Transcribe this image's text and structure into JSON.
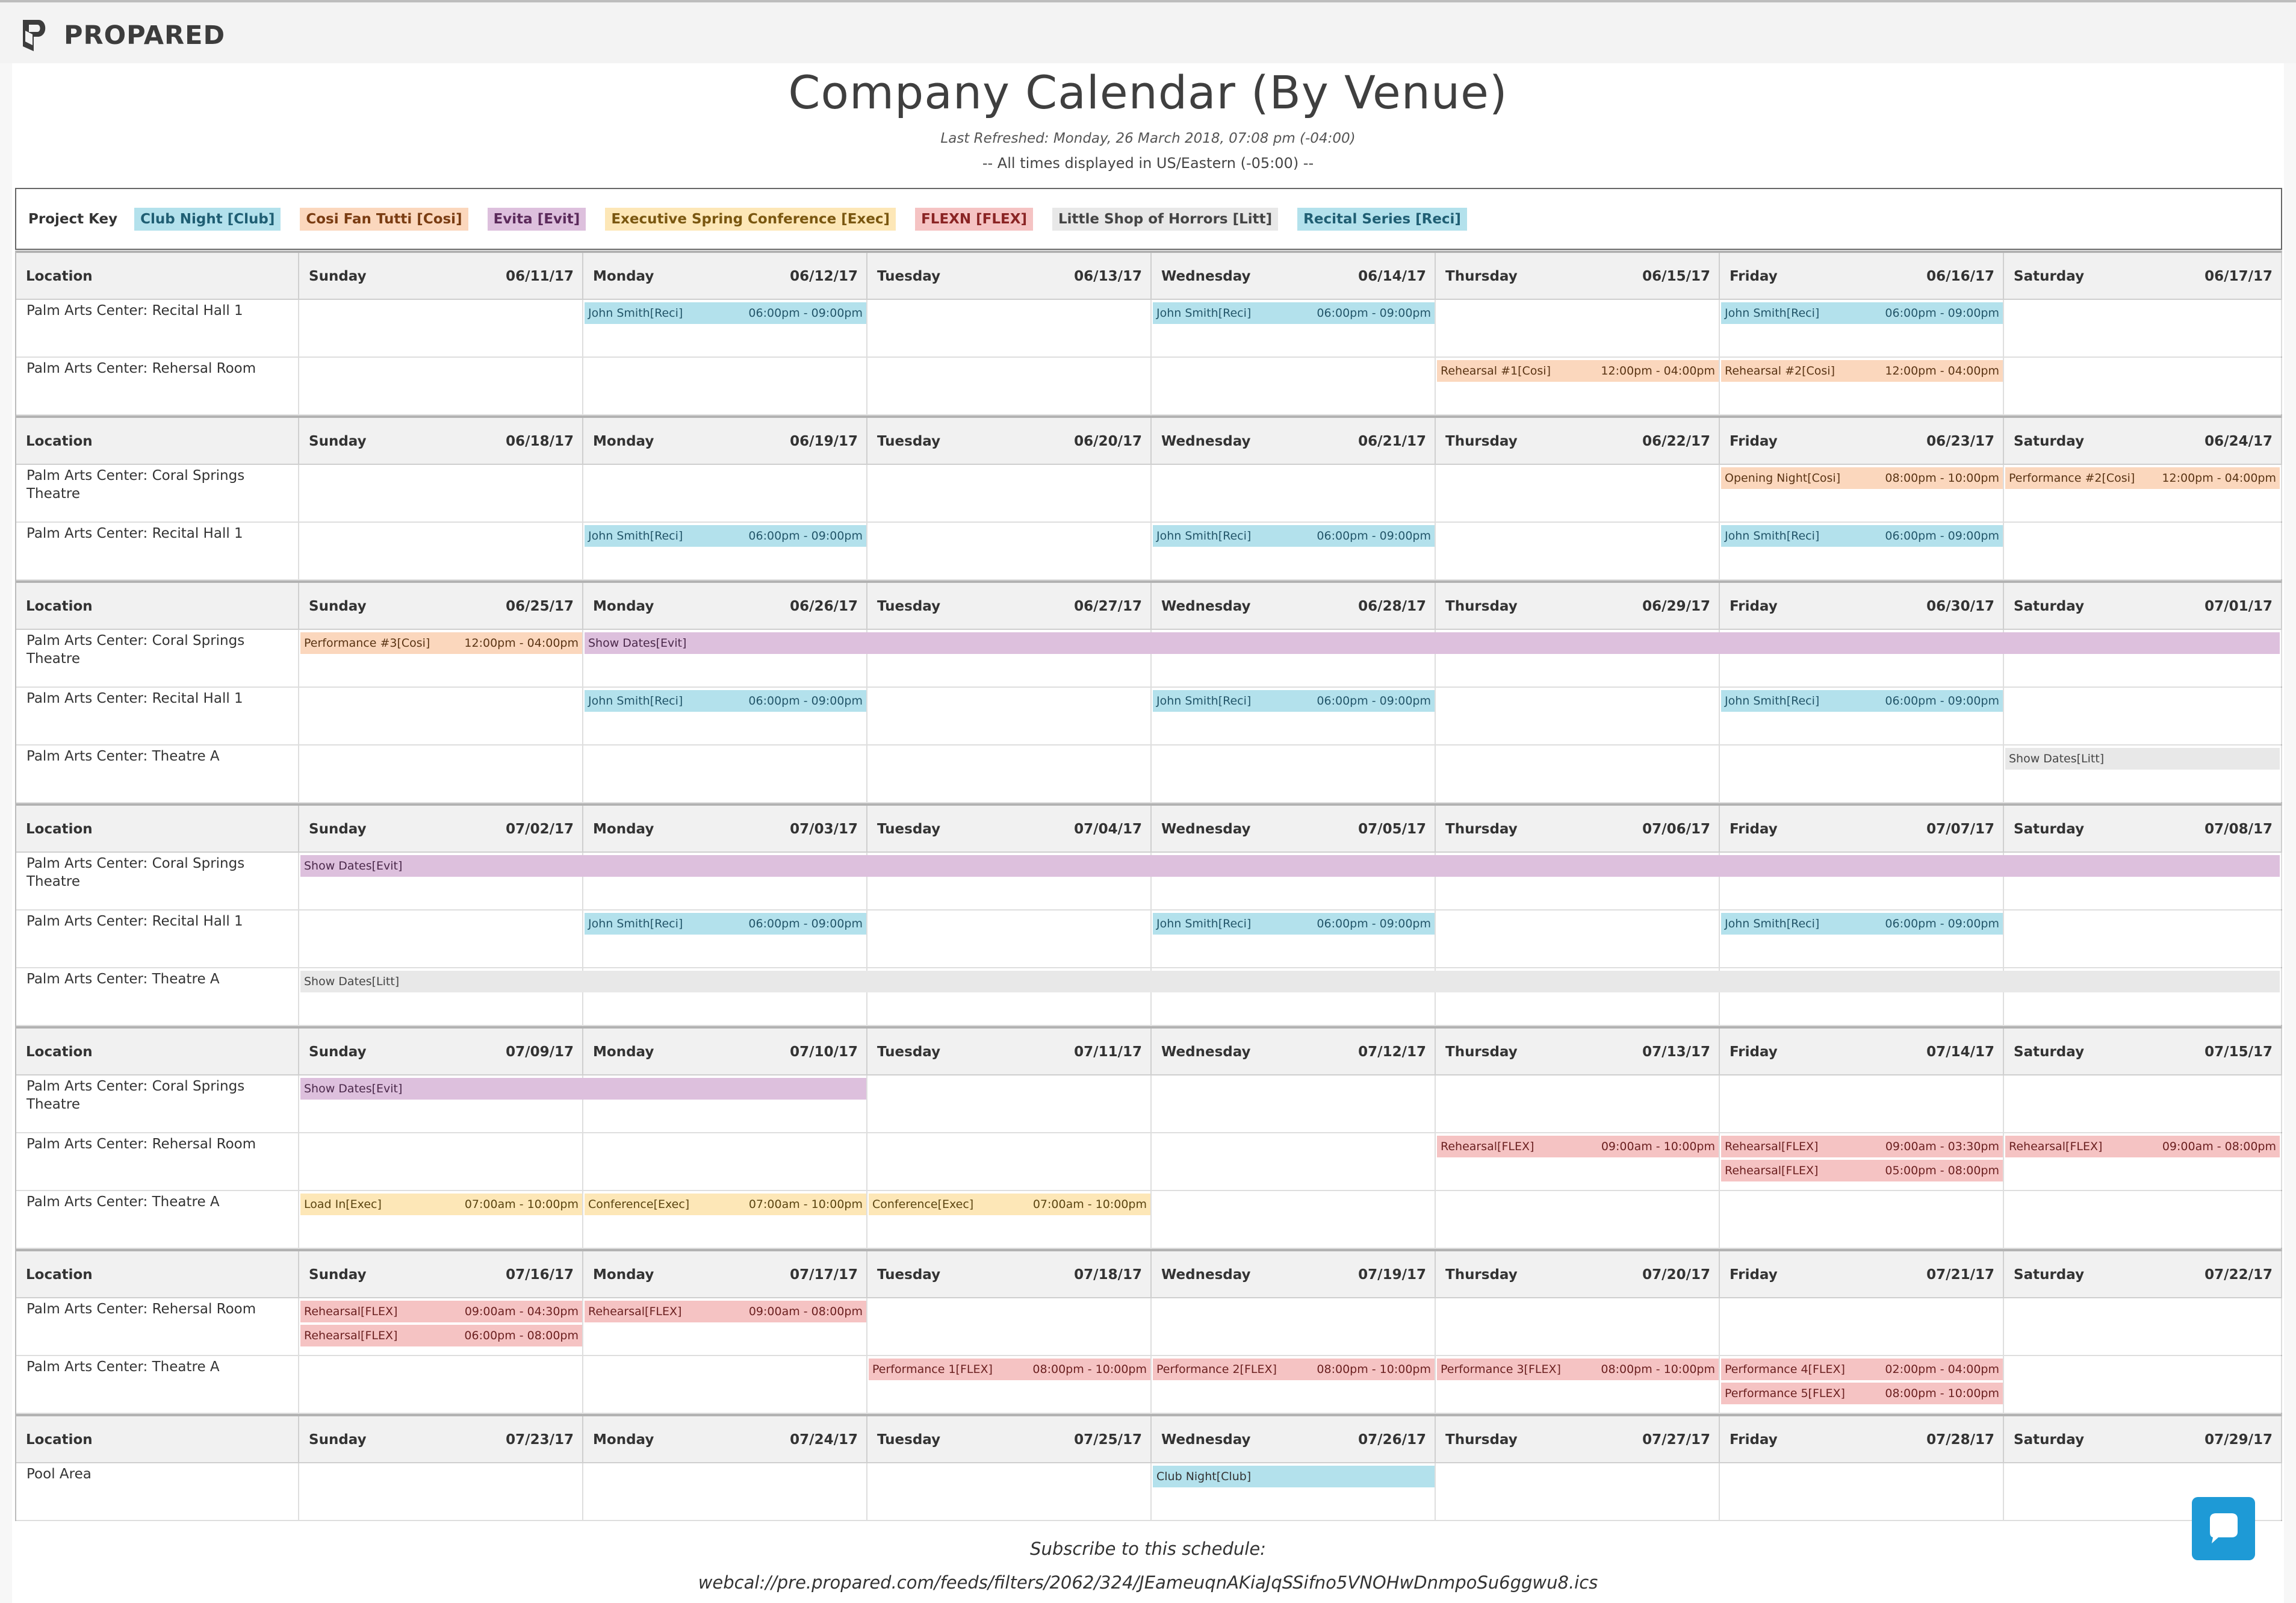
{
  "brand": {
    "name": "PROPARED"
  },
  "page": {
    "title": "Company Calendar (By Venue)",
    "last_refreshed": "Last Refreshed: Monday, 26 March 2018, 07:08 pm (-04:00)",
    "timezone_note": "-- All times displayed in US/Eastern (-05:00) --"
  },
  "project_key": {
    "label": "Project Key",
    "items": [
      {
        "label": "Club Night [Club]",
        "bg": "#b3e1ec",
        "fg": "#1f5e73"
      },
      {
        "label": "Cosi Fan Tutti [Cosi]",
        "bg": "#fbd7bd",
        "fg": "#7a3c12"
      },
      {
        "label": "Evita [Evit]",
        "bg": "#ddc0dd",
        "fg": "#5b2a5b"
      },
      {
        "label": "Executive Spring Conference [Exec]",
        "bg": "#fde7b7",
        "fg": "#7a5710"
      },
      {
        "label": "FLEXN [FLEX]",
        "bg": "#f5c3c3",
        "fg": "#8a2424"
      },
      {
        "label": "Little Shop of Horrors [Litt]",
        "bg": "#e8e8e8",
        "fg": "#444444"
      },
      {
        "label": "Recital Series [Reci]",
        "bg": "#b3e1ec",
        "fg": "#1f5e73"
      }
    ]
  },
  "colors": {
    "Club": "#b3e1ec",
    "Cosi": "#fbd7bd",
    "Evit": "#ddc0dd",
    "Exec": "#fde7b7",
    "FLEX": "#f5c3c3",
    "Litt": "#e8e8e8",
    "Reci": "#b3e1ec",
    "chat": "#1e9ad6"
  },
  "location_header": "Location",
  "day_names": [
    "Sunday",
    "Monday",
    "Tuesday",
    "Wednesday",
    "Thursday",
    "Friday",
    "Saturday"
  ],
  "weeks": [
    {
      "dates": [
        "06/11/17",
        "06/12/17",
        "06/13/17",
        "06/14/17",
        "06/15/17",
        "06/16/17",
        "06/17/17"
      ],
      "rows": [
        {
          "location": "Palm Arts Center: Recital Hall 1",
          "events": [
            {
              "day": 1,
              "span": 1,
              "lane": 0,
              "name": "John Smith[Reci]",
              "time": "06:00pm - 09:00pm",
              "proj": "Reci"
            },
            {
              "day": 3,
              "span": 1,
              "lane": 0,
              "name": "John Smith[Reci]",
              "time": "06:00pm - 09:00pm",
              "proj": "Reci"
            },
            {
              "day": 5,
              "span": 1,
              "lane": 0,
              "name": "John Smith[Reci]",
              "time": "06:00pm - 09:00pm",
              "proj": "Reci"
            }
          ]
        },
        {
          "location": "Palm Arts Center: Rehersal Room",
          "events": [
            {
              "day": 4,
              "span": 1,
              "lane": 0,
              "name": "Rehearsal #1[Cosi]",
              "time": "12:00pm - 04:00pm",
              "proj": "Cosi"
            },
            {
              "day": 5,
              "span": 1,
              "lane": 0,
              "name": "Rehearsal #2[Cosi]",
              "time": "12:00pm - 04:00pm",
              "proj": "Cosi"
            }
          ]
        }
      ]
    },
    {
      "dates": [
        "06/18/17",
        "06/19/17",
        "06/20/17",
        "06/21/17",
        "06/22/17",
        "06/23/17",
        "06/24/17"
      ],
      "rows": [
        {
          "location": "Palm Arts Center: Coral Springs Theatre",
          "events": [
            {
              "day": 5,
              "span": 1,
              "lane": 0,
              "name": "Opening Night[Cosi]",
              "time": "08:00pm - 10:00pm",
              "proj": "Cosi"
            },
            {
              "day": 6,
              "span": 1,
              "lane": 0,
              "name": "Performance #2[Cosi]",
              "time": "12:00pm - 04:00pm",
              "proj": "Cosi"
            }
          ]
        },
        {
          "location": "Palm Arts Center: Recital Hall 1",
          "events": [
            {
              "day": 1,
              "span": 1,
              "lane": 0,
              "name": "John Smith[Reci]",
              "time": "06:00pm - 09:00pm",
              "proj": "Reci"
            },
            {
              "day": 3,
              "span": 1,
              "lane": 0,
              "name": "John Smith[Reci]",
              "time": "06:00pm - 09:00pm",
              "proj": "Reci"
            },
            {
              "day": 5,
              "span": 1,
              "lane": 0,
              "name": "John Smith[Reci]",
              "time": "06:00pm - 09:00pm",
              "proj": "Reci"
            }
          ]
        }
      ]
    },
    {
      "dates": [
        "06/25/17",
        "06/26/17",
        "06/27/17",
        "06/28/17",
        "06/29/17",
        "06/30/17",
        "07/01/17"
      ],
      "rows": [
        {
          "location": "Palm Arts Center: Coral Springs Theatre",
          "events": [
            {
              "day": 0,
              "span": 1,
              "lane": 0,
              "name": "Performance #3[Cosi]",
              "time": "12:00pm - 04:00pm",
              "proj": "Cosi"
            },
            {
              "day": 1,
              "span": 6,
              "lane": 0,
              "name": "Show Dates[Evit]",
              "time": "",
              "proj": "Evit"
            }
          ]
        },
        {
          "location": "Palm Arts Center: Recital Hall 1",
          "events": [
            {
              "day": 1,
              "span": 1,
              "lane": 0,
              "name": "John Smith[Reci]",
              "time": "06:00pm - 09:00pm",
              "proj": "Reci"
            },
            {
              "day": 3,
              "span": 1,
              "lane": 0,
              "name": "John Smith[Reci]",
              "time": "06:00pm - 09:00pm",
              "proj": "Reci"
            },
            {
              "day": 5,
              "span": 1,
              "lane": 0,
              "name": "John Smith[Reci]",
              "time": "06:00pm - 09:00pm",
              "proj": "Reci"
            }
          ]
        },
        {
          "location": "Palm Arts Center: Theatre A",
          "events": [
            {
              "day": 6,
              "span": 1,
              "lane": 0,
              "name": "Show Dates[Litt]",
              "time": "",
              "proj": "Litt"
            }
          ]
        }
      ]
    },
    {
      "dates": [
        "07/02/17",
        "07/03/17",
        "07/04/17",
        "07/05/17",
        "07/06/17",
        "07/07/17",
        "07/08/17"
      ],
      "rows": [
        {
          "location": "Palm Arts Center: Coral Springs Theatre",
          "events": [
            {
              "day": 0,
              "span": 7,
              "lane": 0,
              "name": "Show Dates[Evit]",
              "time": "",
              "proj": "Evit"
            }
          ]
        },
        {
          "location": "Palm Arts Center: Recital Hall 1",
          "events": [
            {
              "day": 1,
              "span": 1,
              "lane": 0,
              "name": "John Smith[Reci]",
              "time": "06:00pm - 09:00pm",
              "proj": "Reci"
            },
            {
              "day": 3,
              "span": 1,
              "lane": 0,
              "name": "John Smith[Reci]",
              "time": "06:00pm - 09:00pm",
              "proj": "Reci"
            },
            {
              "day": 5,
              "span": 1,
              "lane": 0,
              "name": "John Smith[Reci]",
              "time": "06:00pm - 09:00pm",
              "proj": "Reci"
            }
          ]
        },
        {
          "location": "Palm Arts Center: Theatre A",
          "events": [
            {
              "day": 0,
              "span": 7,
              "lane": 0,
              "name": "Show Dates[Litt]",
              "time": "",
              "proj": "Litt"
            }
          ]
        }
      ]
    },
    {
      "dates": [
        "07/09/17",
        "07/10/17",
        "07/11/17",
        "07/12/17",
        "07/13/17",
        "07/14/17",
        "07/15/17"
      ],
      "rows": [
        {
          "location": "Palm Arts Center: Coral Springs Theatre",
          "events": [
            {
              "day": 0,
              "span": 2,
              "lane": 0,
              "name": "Show Dates[Evit]",
              "time": "",
              "proj": "Evit"
            }
          ]
        },
        {
          "location": "Palm Arts Center: Rehersal Room",
          "events": [
            {
              "day": 4,
              "span": 1,
              "lane": 0,
              "name": "Rehearsal[FLEX]",
              "time": "09:00am - 10:00pm",
              "proj": "FLEX"
            },
            {
              "day": 5,
              "span": 1,
              "lane": 0,
              "name": "Rehearsal[FLEX]",
              "time": "09:00am - 03:30pm",
              "proj": "FLEX"
            },
            {
              "day": 5,
              "span": 1,
              "lane": 1,
              "name": "Rehearsal[FLEX]",
              "time": "05:00pm - 08:00pm",
              "proj": "FLEX"
            },
            {
              "day": 6,
              "span": 1,
              "lane": 0,
              "name": "Rehearsal[FLEX]",
              "time": "09:00am - 08:00pm",
              "proj": "FLEX"
            }
          ]
        },
        {
          "location": "Palm Arts Center: Theatre A",
          "events": [
            {
              "day": 0,
              "span": 1,
              "lane": 0,
              "name": "Load In[Exec]",
              "time": "07:00am - 10:00pm",
              "proj": "Exec"
            },
            {
              "day": 1,
              "span": 1,
              "lane": 0,
              "name": "Conference[Exec]",
              "time": "07:00am - 10:00pm",
              "proj": "Exec"
            },
            {
              "day": 2,
              "span": 1,
              "lane": 0,
              "name": "Conference[Exec]",
              "time": "07:00am - 10:00pm",
              "proj": "Exec"
            }
          ]
        }
      ]
    },
    {
      "dates": [
        "07/16/17",
        "07/17/17",
        "07/18/17",
        "07/19/17",
        "07/20/17",
        "07/21/17",
        "07/22/17"
      ],
      "rows": [
        {
          "location": "Palm Arts Center: Rehersal Room",
          "events": [
            {
              "day": 0,
              "span": 1,
              "lane": 0,
              "name": "Rehearsal[FLEX]",
              "time": "09:00am - 04:30pm",
              "proj": "FLEX"
            },
            {
              "day": 0,
              "span": 1,
              "lane": 1,
              "name": "Rehearsal[FLEX]",
              "time": "06:00pm - 08:00pm",
              "proj": "FLEX"
            },
            {
              "day": 1,
              "span": 1,
              "lane": 0,
              "name": "Rehearsal[FLEX]",
              "time": "09:00am - 08:00pm",
              "proj": "FLEX"
            }
          ]
        },
        {
          "location": "Palm Arts Center: Theatre A",
          "events": [
            {
              "day": 2,
              "span": 1,
              "lane": 0,
              "name": "Performance 1[FLEX]",
              "time": "08:00pm - 10:00pm",
              "proj": "FLEX"
            },
            {
              "day": 3,
              "span": 1,
              "lane": 0,
              "name": "Performance 2[FLEX]",
              "time": "08:00pm - 10:00pm",
              "proj": "FLEX"
            },
            {
              "day": 4,
              "span": 1,
              "lane": 0,
              "name": "Performance 3[FLEX]",
              "time": "08:00pm - 10:00pm",
              "proj": "FLEX"
            },
            {
              "day": 5,
              "span": 1,
              "lane": 0,
              "name": "Performance 4[FLEX]",
              "time": "02:00pm - 04:00pm",
              "proj": "FLEX"
            },
            {
              "day": 5,
              "span": 1,
              "lane": 1,
              "name": "Performance 5[FLEX]",
              "time": "08:00pm - 10:00pm",
              "proj": "FLEX"
            }
          ]
        }
      ]
    },
    {
      "dates": [
        "07/23/17",
        "07/24/17",
        "07/25/17",
        "07/26/17",
        "07/27/17",
        "07/28/17",
        "07/29/17"
      ],
      "rows": [
        {
          "location": "Pool Area",
          "events": [
            {
              "day": 3,
              "span": 1,
              "lane": 0,
              "name": "Club Night[Club]",
              "time": "",
              "proj": "Club"
            }
          ]
        }
      ]
    }
  ],
  "footer": {
    "subscribe_label": "Subscribe to this schedule:",
    "feed_url": "webcal://pre.propared.com/feeds/filters/2062/324/JEameuqnAKiaJqSSifno5VNOHwDnmpoSu6ggwu8.ics"
  }
}
